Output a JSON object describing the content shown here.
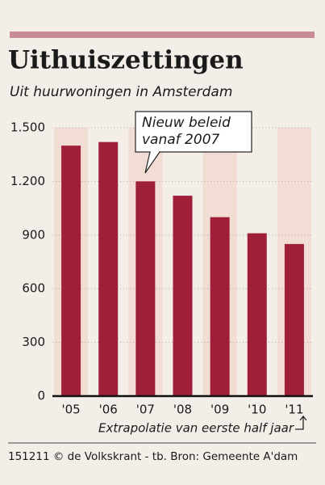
{
  "chart_data": {
    "type": "bar",
    "title": "Uithuiszettingen",
    "subtitle": "Uit huurwoningen in Amsterdam",
    "categories": [
      "'05",
      "'06",
      "'07",
      "'08",
      "'09",
      "'10",
      "'11"
    ],
    "values": [
      1400,
      1420,
      1200,
      1120,
      1000,
      910,
      850
    ],
    "color": "#a01f38",
    "ylim": [
      0,
      1500
    ],
    "yticks": [
      0,
      300,
      600,
      900,
      {
        "value": 1200,
        "label": "1.200"
      },
      {
        "value": 1500,
        "label": "1.500"
      }
    ],
    "grid": true,
    "annotation": [
      "Nieuw beleid",
      "vanaf 2007"
    ],
    "note": "Extrapolatie van eerste half jaar",
    "source": "151211 © de Volkskrant - tb. Bron: Gemeente A'dam"
  }
}
